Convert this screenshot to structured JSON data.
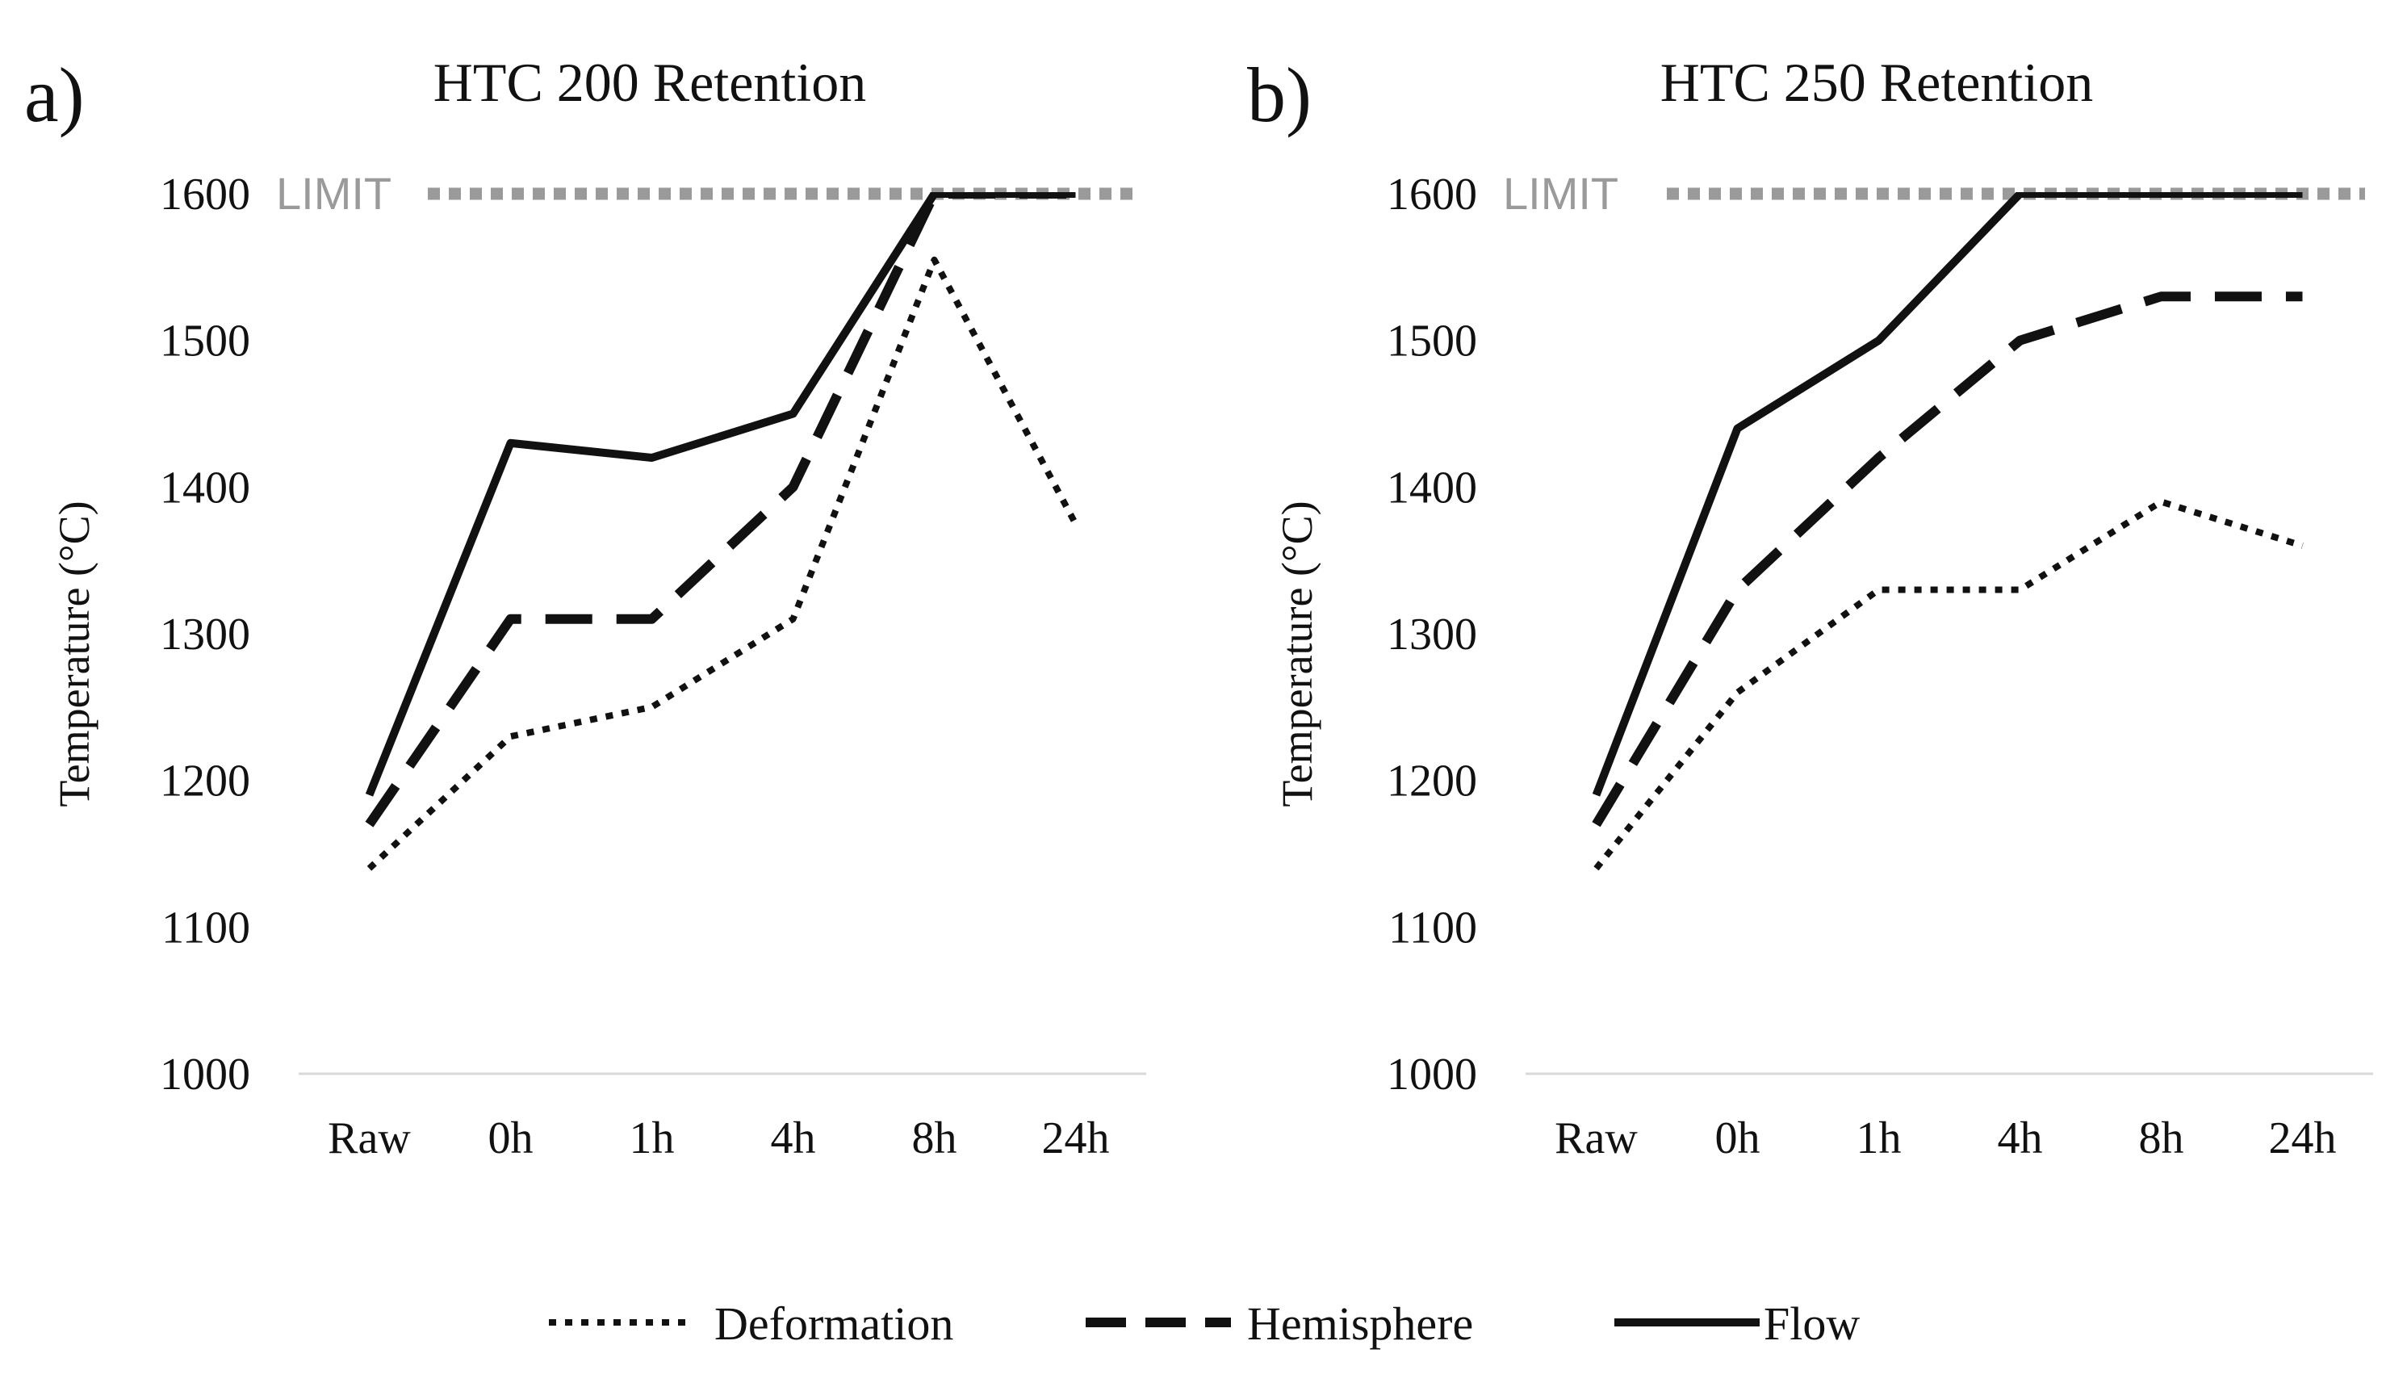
{
  "legend": [
    {
      "name": "Deformation",
      "style": "dotted"
    },
    {
      "name": "Hemisphere",
      "style": "dashed"
    },
    {
      "name": "Flow",
      "style": "solid"
    }
  ],
  "colors": {
    "series": "#111111",
    "limit": "#9a9a9a",
    "axis": "#d9d9d9"
  },
  "chart_data": [
    {
      "type": "line",
      "panel_letter": "a)",
      "title": "HTC 200 Retention",
      "ylabel": "Temperature (°C)",
      "xlabel": "",
      "categories": [
        "Raw",
        "0h",
        "1h",
        "4h",
        "8h",
        "24h"
      ],
      "ylim": [
        1000,
        1600
      ],
      "yticks": [
        1000,
        1100,
        1200,
        1300,
        1400,
        1500,
        1600
      ],
      "limit": {
        "label": "LIMIT",
        "value": 1600
      },
      "series": [
        {
          "name": "Deformation",
          "style": "dotted",
          "values": [
            1140,
            1230,
            1250,
            1310,
            1555,
            1375
          ]
        },
        {
          "name": "Hemisphere",
          "style": "dashed",
          "values": [
            1170,
            1310,
            1310,
            1400,
            1600,
            1600
          ]
        },
        {
          "name": "Flow",
          "style": "solid",
          "values": [
            1190,
            1430,
            1420,
            1450,
            1600,
            1600
          ]
        }
      ]
    },
    {
      "type": "line",
      "panel_letter": "b)",
      "title": "HTC 250 Retention",
      "ylabel": "Temperature (°C)",
      "xlabel": "",
      "categories": [
        "Raw",
        "0h",
        "1h",
        "4h",
        "8h",
        "24h"
      ],
      "ylim": [
        1000,
        1600
      ],
      "yticks": [
        1000,
        1100,
        1200,
        1300,
        1400,
        1500,
        1600
      ],
      "limit": {
        "label": "LIMIT",
        "value": 1600
      },
      "series": [
        {
          "name": "Deformation",
          "style": "dotted",
          "values": [
            1140,
            1260,
            1330,
            1330,
            1390,
            1360
          ]
        },
        {
          "name": "Hemisphere",
          "style": "dashed",
          "values": [
            1170,
            1330,
            1420,
            1500,
            1530,
            1530
          ]
        },
        {
          "name": "Flow",
          "style": "solid",
          "values": [
            1190,
            1440,
            1500,
            1600,
            1600,
            1600
          ]
        }
      ]
    }
  ]
}
